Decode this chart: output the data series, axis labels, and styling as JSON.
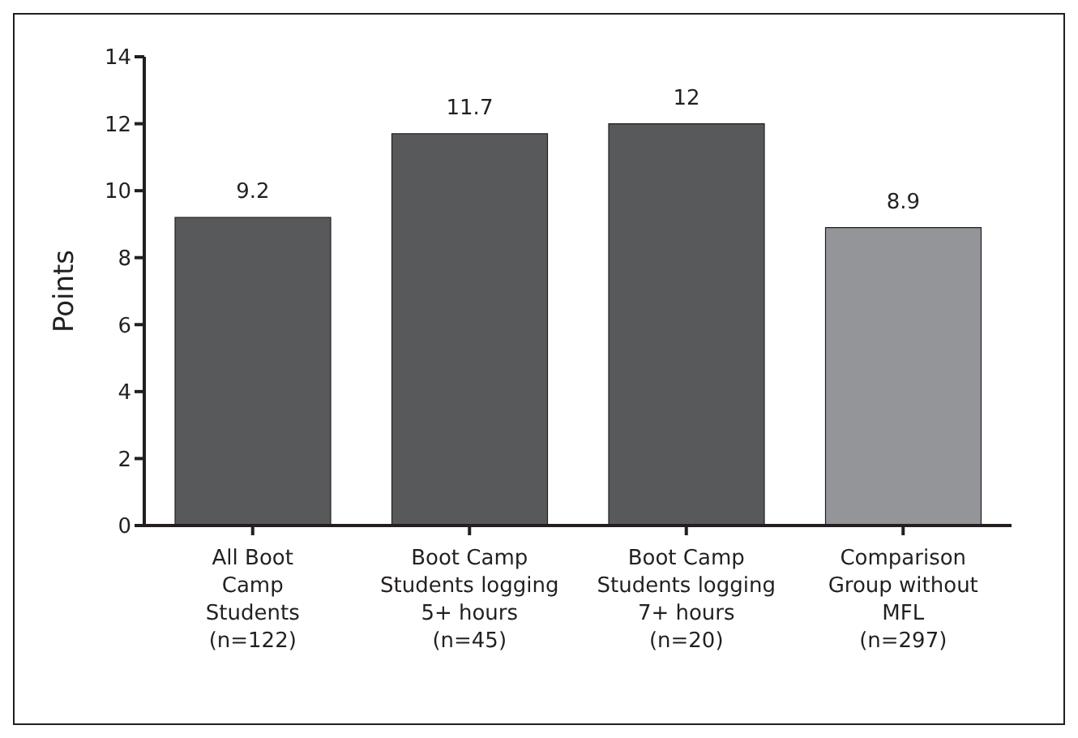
{
  "chart_data": {
    "type": "bar",
    "ylabel": "Points",
    "categories": [
      "All Boot\nCamp\nStudents\n(n=122)",
      "Boot Camp\nStudents logging\n5+ hours\n(n=45)",
      "Boot Camp\nStudents logging\n7+ hours\n(n=20)",
      "Comparison\nGroup without\nMFL\n(n=297)"
    ],
    "values": [
      9.2,
      11.7,
      12,
      8.9
    ],
    "colors": [
      "#58595b",
      "#58595b",
      "#58595b",
      "#939598"
    ],
    "ylim": [
      0,
      14
    ],
    "yticks": [
      0,
      2,
      4,
      6,
      8,
      10,
      12,
      14
    ],
    "grid": false,
    "data_labels": true
  }
}
